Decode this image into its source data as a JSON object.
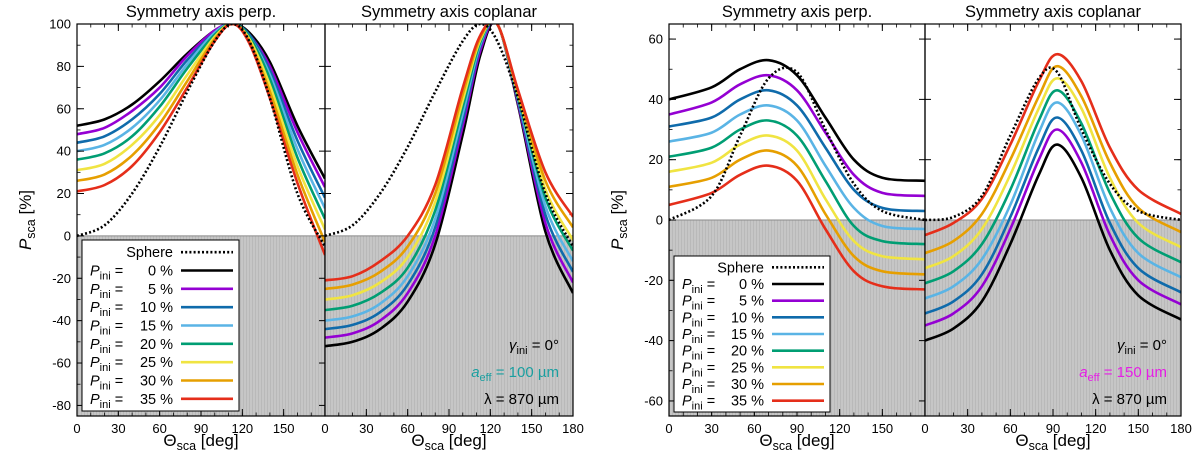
{
  "figure": {
    "x_label": "Θ",
    "x_label_sub": "sca",
    "x_label_unit": " [deg]",
    "y_label": "P",
    "y_label_sub": "sca",
    "y_label_unit": " [%]"
  },
  "legend": {
    "sphere_label": "Sphere",
    "p_symbol": "P",
    "p_sub": "ini",
    "entries": [
      {
        "value": "0 %",
        "color": "#000000"
      },
      {
        "value": "5 %",
        "color": "#9400d3"
      },
      {
        "value": "10 %",
        "color": "#0f6bab"
      },
      {
        "value": "15 %",
        "color": "#5ab4e5"
      },
      {
        "value": "20 %",
        "color": "#009e73"
      },
      {
        "value": "25 %",
        "color": "#f0e442"
      },
      {
        "value": "30 %",
        "color": "#e69f00"
      },
      {
        "value": "35 %",
        "color": "#e52e1a"
      }
    ]
  },
  "chart_data": [
    {
      "type": "line",
      "title": "Symmetry axis perp.",
      "xlabel": "Θsca [deg]",
      "ylabel": "Psca [%]",
      "xlim": [
        0,
        180
      ],
      "ylim": [
        -85,
        100
      ],
      "x_ticks": [
        0,
        30,
        60,
        90,
        120,
        150
      ],
      "y_ticks": [
        100,
        80,
        60,
        40,
        20,
        0,
        -20,
        -40,
        -60,
        -80
      ],
      "x": [
        0,
        20,
        40,
        60,
        80,
        100,
        113,
        125,
        140,
        160,
        180
      ],
      "sphere": [
        0,
        5,
        20,
        42,
        68,
        92,
        100,
        92,
        65,
        20,
        -5
      ],
      "series": [
        {
          "name": "Pini = 0 %",
          "values": [
            52,
            55,
            62,
            73,
            86,
            97,
            100,
            96,
            82,
            52,
            27
          ]
        },
        {
          "name": "Pini = 5 %",
          "values": [
            48,
            51,
            59,
            70,
            85,
            97,
            100,
            95,
            80,
            49,
            23
          ]
        },
        {
          "name": "Pini = 10 %",
          "values": [
            44,
            47,
            55,
            67,
            83,
            96,
            100,
            95,
            78,
            45,
            18
          ]
        },
        {
          "name": "Pini = 15 %",
          "values": [
            40,
            43,
            51,
            64,
            81,
            96,
            100,
            94,
            76,
            41,
            13
          ]
        },
        {
          "name": "Pini = 20 %",
          "values": [
            36,
            39,
            47,
            61,
            79,
            95,
            100,
            94,
            74,
            37,
            8
          ]
        },
        {
          "name": "Pini = 25 %",
          "values": [
            31,
            34,
            43,
            57,
            76,
            94,
            100,
            93,
            71,
            33,
            3
          ]
        },
        {
          "name": "Pini = 30 %",
          "values": [
            26,
            29,
            38,
            53,
            73,
            93,
            100,
            92,
            68,
            29,
            -3
          ]
        },
        {
          "name": "Pini = 35 %",
          "values": [
            21,
            24,
            33,
            49,
            70,
            92,
            100,
            91,
            65,
            25,
            -9
          ]
        }
      ]
    },
    {
      "type": "line",
      "title": "Symmetry axis coplanar",
      "xlabel": "Θsca [deg]",
      "xlim": [
        0,
        180
      ],
      "ylim": [
        -85,
        100
      ],
      "x_ticks": [
        0,
        30,
        60,
        90,
        120,
        150,
        180
      ],
      "x": [
        0,
        20,
        40,
        60,
        80,
        100,
        113,
        125,
        140,
        160,
        180
      ],
      "sphere": [
        0,
        5,
        20,
        42,
        68,
        92,
        100,
        92,
        65,
        20,
        -5
      ],
      "annotations": {
        "gamma": "γini = 0°",
        "aeff": "aeff = 100 µm",
        "aeff_color": "#1a9fa0",
        "lambda": "λ = 870 µm"
      },
      "series": [
        {
          "name": "Pini = 0 %",
          "values": [
            -52,
            -50,
            -44,
            -31,
            -4,
            48,
            86,
            100,
            62,
            2,
            -27
          ]
        },
        {
          "name": "Pini = 5 %",
          "values": [
            -48,
            -46,
            -40,
            -27,
            0,
            52,
            88,
            100,
            63,
            6,
            -22
          ]
        },
        {
          "name": "Pini = 10 %",
          "values": [
            -44,
            -42,
            -36,
            -23,
            4,
            55,
            90,
            100,
            64,
            10,
            -17
          ]
        },
        {
          "name": "Pini = 15 %",
          "values": [
            -40,
            -38,
            -32,
            -19,
            8,
            58,
            91,
            100,
            65,
            14,
            -12
          ]
        },
        {
          "name": "Pini = 20 %",
          "values": [
            -35,
            -33,
            -27,
            -15,
            12,
            61,
            92,
            100,
            66,
            18,
            -7
          ]
        },
        {
          "name": "Pini = 25 %",
          "values": [
            -30,
            -28,
            -22,
            -10,
            16,
            64,
            93,
            100,
            67,
            22,
            -2
          ]
        },
        {
          "name": "Pini = 30 %",
          "values": [
            -25,
            -23,
            -17,
            -5,
            20,
            67,
            94,
            100,
            68,
            26,
            4
          ]
        },
        {
          "name": "Pini = 35 %",
          "values": [
            -21,
            -19,
            -12,
            0,
            24,
            70,
            95,
            100,
            69,
            30,
            9
          ]
        }
      ]
    },
    {
      "type": "line",
      "title": "Symmetry axis perp.",
      "xlabel": "Θsca [deg]",
      "ylabel": "Psca [%]",
      "xlim": [
        0,
        180
      ],
      "ylim": [
        -65,
        65
      ],
      "x_ticks": [
        0,
        30,
        60,
        90,
        120,
        150
      ],
      "y_ticks": [
        60,
        40,
        20,
        0,
        -20,
        -40,
        -60
      ],
      "x": [
        0,
        30,
        50,
        70,
        90,
        110,
        130,
        150,
        180
      ],
      "sphere": [
        0,
        8,
        28,
        47,
        49,
        30,
        12,
        3,
        0
      ],
      "series": [
        {
          "name": "Pini = 0 %",
          "values": [
            40,
            44,
            50,
            53,
            48,
            34,
            20,
            14,
            13
          ]
        },
        {
          "name": "Pini = 5 %",
          "values": [
            35,
            39,
            45,
            48,
            43,
            29,
            15,
            9,
            8
          ]
        },
        {
          "name": "Pini = 10 %",
          "values": [
            31,
            34,
            40,
            43,
            38,
            24,
            10,
            4,
            3
          ]
        },
        {
          "name": "Pini = 15 %",
          "values": [
            26,
            29,
            35,
            38,
            33,
            18,
            4,
            -2,
            -3
          ]
        },
        {
          "name": "Pini = 20 %",
          "values": [
            21,
            24,
            30,
            33,
            28,
            13,
            -2,
            -7,
            -8
          ]
        },
        {
          "name": "Pini = 25 %",
          "values": [
            16,
            19,
            25,
            28,
            23,
            7,
            -7,
            -12,
            -13
          ]
        },
        {
          "name": "Pini = 30 %",
          "values": [
            11,
            14,
            20,
            23,
            18,
            2,
            -12,
            -17,
            -18
          ]
        },
        {
          "name": "Pini = 35 %",
          "values": [
            5,
            9,
            15,
            18,
            13,
            -3,
            -17,
            -22,
            -23
          ]
        }
      ]
    },
    {
      "type": "line",
      "title": "Symmetry axis coplanar",
      "xlabel": "Θsca [deg]",
      "xlim": [
        0,
        180
      ],
      "ylim": [
        -65,
        65
      ],
      "x_ticks": [
        0,
        30,
        60,
        90,
        120,
        150,
        180
      ],
      "x": [
        0,
        20,
        40,
        60,
        80,
        93,
        110,
        130,
        150,
        180
      ],
      "sphere": [
        0,
        1,
        8,
        28,
        47,
        49,
        30,
        12,
        3,
        0
      ],
      "annotations": {
        "gamma": "γini = 0°",
        "aeff": "aeff = 150 µm",
        "aeff_color": "#e61ee6",
        "lambda": "λ = 870 µm"
      },
      "series": [
        {
          "name": "Pini = 0 %",
          "values": [
            -40,
            -36,
            -27,
            -8,
            15,
            25,
            14,
            -10,
            -25,
            -33
          ]
        },
        {
          "name": "Pini = 5 %",
          "values": [
            -35,
            -31,
            -22,
            -3,
            20,
            30,
            19,
            -5,
            -20,
            -28
          ]
        },
        {
          "name": "Pini = 10 %",
          "values": [
            -31,
            -27,
            -18,
            1,
            24,
            34,
            23,
            -1,
            -16,
            -24
          ]
        },
        {
          "name": "Pini = 15 %",
          "values": [
            -26,
            -22,
            -13,
            5,
            29,
            39,
            28,
            4,
            -11,
            -19
          ]
        },
        {
          "name": "Pini = 20 %",
          "values": [
            -21,
            -17,
            -8,
            10,
            33,
            43,
            32,
            9,
            -6,
            -14
          ]
        },
        {
          "name": "Pini = 25 %",
          "values": [
            -16,
            -12,
            -3,
            15,
            37,
            47,
            37,
            14,
            -1,
            -9
          ]
        },
        {
          "name": "Pini = 30 %",
          "values": [
            -11,
            -7,
            2,
            20,
            41,
            51,
            41,
            19,
            4,
            -4
          ]
        },
        {
          "name": "Pini = 35 %",
          "values": [
            -5,
            -1,
            7,
            25,
            46,
            55,
            46,
            24,
            10,
            2
          ]
        }
      ]
    }
  ]
}
